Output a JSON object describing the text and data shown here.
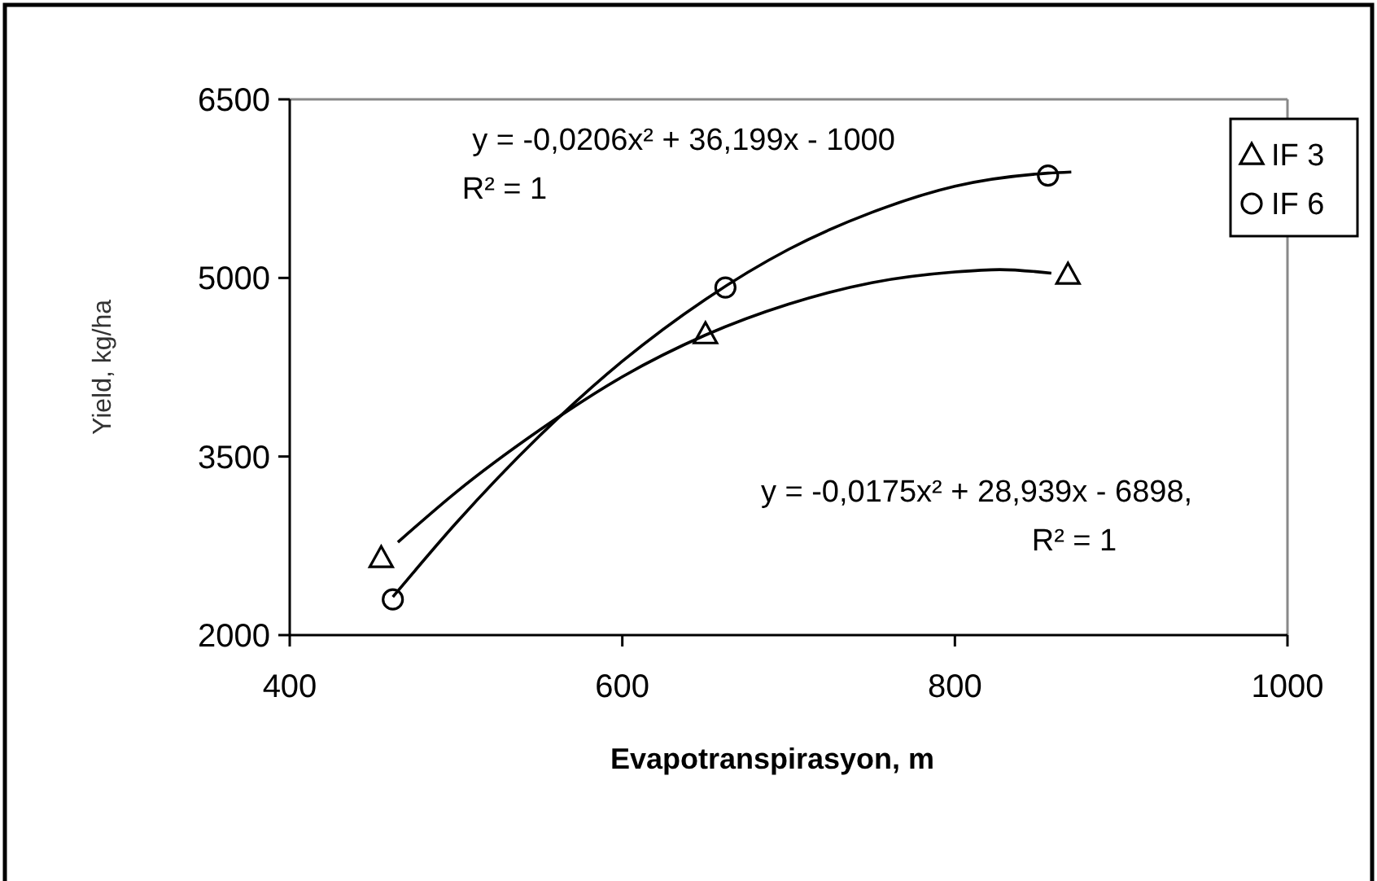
{
  "chart_data": {
    "type": "scatter",
    "xlabel": "Evapotranspirasyon, m",
    "ylabel": "Yield, kg/ha",
    "xlim": [
      400,
      1000
    ],
    "xticks": [
      400,
      600,
      800,
      1000
    ],
    "ylim": [
      2000,
      6500
    ],
    "yticks": [
      2000,
      3500,
      5000,
      6500
    ],
    "grid": false,
    "legend": "top right",
    "series": [
      {
        "name": "IF 3",
        "color": "#000000",
        "marker": "triangle",
        "x": [
          455,
          650,
          868
        ],
        "values": [
          2650,
          4530,
          5030
        ]
      },
      {
        "name": "IF 6",
        "color": "#000000",
        "marker": "circle",
        "x": [
          462,
          662,
          856
        ],
        "values": [
          2300,
          4920,
          5860
        ]
      },
      {
        "type": "line",
        "color": "#000000",
        "marker": "none",
        "x": [
          465,
          500,
          550,
          600,
          650,
          700,
          750,
          800,
          827,
          858
        ],
        "values": [
          2780,
          3200,
          3720,
          4170,
          4520,
          4780,
          4960,
          5050,
          5070,
          5040
        ]
      },
      {
        "type": "line",
        "color": "#000000",
        "marker": "none",
        "x": [
          462,
          500,
          550,
          600,
          650,
          700,
          750,
          800,
          856,
          870
        ],
        "values": [
          2320,
          2940,
          3670,
          4300,
          4820,
          5240,
          5550,
          5770,
          5880,
          5890
        ]
      }
    ],
    "annotations": [
      "y = -0,0206x² + 36,199x - 1000",
      "R² = 1",
      "y = -0,0175x² + 28,939x - 6898,",
      "R² = 1"
    ]
  }
}
